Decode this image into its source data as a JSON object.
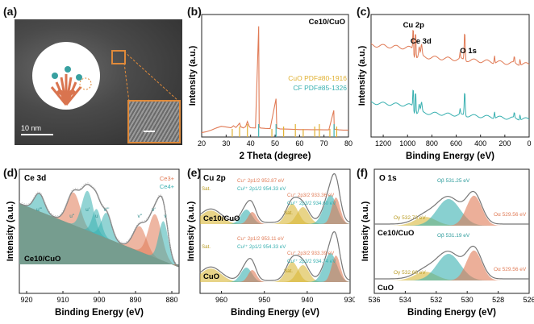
{
  "panels": {
    "a": {
      "label": "(a)",
      "scale_bar": "10 nm"
    },
    "b": {
      "label": "(b)"
    },
    "c": {
      "label": "(c)"
    },
    "d": {
      "label": "(d)"
    },
    "e": {
      "label": "(e)"
    },
    "f": {
      "label": "(f)"
    }
  },
  "chart_data": [
    {
      "id": "b",
      "type": "line",
      "title": "Ce10/CuO",
      "xlabel": "2 Theta (degree)",
      "ylabel": "Intensity (a.u.)",
      "xlim": [
        20,
        80
      ],
      "xticks": [
        20,
        30,
        40,
        50,
        60,
        70,
        80
      ],
      "series": [
        {
          "name": "Ce10/CuO",
          "color": "#e07a55",
          "x": [
            20,
            22,
            24,
            26,
            28,
            30,
            32,
            33,
            34,
            35.5,
            36,
            37,
            38,
            38.7,
            39.5,
            40,
            42,
            43.3,
            43.5,
            44,
            46,
            48,
            50.4,
            50.7,
            52,
            55,
            58,
            60,
            62,
            65,
            68,
            70,
            72,
            74,
            74.2,
            76,
            78,
            80
          ],
          "y": [
            1.0,
            1.8,
            3.2,
            5.0,
            6.4,
            5.8,
            5.2,
            6.8,
            5.4,
            9.0,
            6.0,
            5.0,
            6.2,
            10.5,
            6.0,
            5.2,
            5.0,
            92,
            6.0,
            5.0,
            4.6,
            4.4,
            30,
            5.0,
            4.2,
            4.0,
            3.8,
            3.6,
            3.6,
            3.5,
            3.5,
            3.4,
            3.4,
            20,
            4.0,
            3.4,
            3.2,
            3.2
          ]
        }
      ],
      "reference_lines": [
        {
          "name": "CuO PDF#80-1916",
          "color": "#e0b030",
          "positions": [
            32.5,
            35.5,
            38.7,
            48.7,
            53.5,
            58.3,
            61.5,
            66.2,
            68.1,
            72.4,
            75.2
          ]
        },
        {
          "name": "CF PDF#85-1326",
          "color": "#38b0b0",
          "positions": [
            43.3,
            50.4,
            74.1
          ]
        }
      ]
    },
    {
      "id": "c",
      "type": "line",
      "xlabel": "Binding Energy (eV)",
      "ylabel": "Intensity (a.u.)",
      "xlim": [
        1300,
        0
      ],
      "xticks": [
        1200,
        1000,
        800,
        600,
        400,
        200,
        0
      ],
      "annotations": [
        "Cu 2p",
        "Ce 3d",
        "O 1s"
      ],
      "series": [
        {
          "name": "Ce10/CuO",
          "color": "#e07a55"
        },
        {
          "name": "CuO",
          "color": "#38b0b0"
        }
      ]
    },
    {
      "id": "d",
      "type": "line",
      "title": "Ce 3d",
      "sample": "Ce10/CuO",
      "xlabel": "Binding Energy (eV)",
      "ylabel": "Intensity (a.u.)",
      "xlim": [
        922,
        878
      ],
      "xticks": [
        920,
        910,
        900,
        890,
        880
      ],
      "legend": [
        "Ce3+",
        "Ce4+"
      ],
      "peaks": [
        "u'''",
        "u''",
        "u'",
        "u",
        "v'''",
        "v''",
        "v'",
        "v"
      ]
    },
    {
      "id": "e",
      "type": "line",
      "title": "Cu 2p",
      "xlabel": "Binding Energy (eV)",
      "ylabel": "Intensity (a.u.)",
      "xlim": [
        965,
        930
      ],
      "xticks": [
        960,
        950,
        940,
        930
      ],
      "samples": [
        {
          "name": "Ce10/CuO",
          "labels": [
            "Cu⁺ 2p1/2 952.87 eV",
            "Cu²⁺ 2p1/2 954.33 eV",
            "Cu⁺ 2p3/2 933.36 eV",
            "Cu²⁺ 2p3/2 934.60 eV",
            "Sat.",
            "Sat."
          ]
        },
        {
          "name": "CuO",
          "labels": [
            "Cu⁺ 2p1/2 953.11 eV",
            "Cu²⁺ 2p1/2 954.33 eV",
            "Cu⁺ 2p3/2 933.39 eV",
            "Cu²⁺ 2p3/2 934.74 eV",
            "Sat.",
            "Sat."
          ]
        }
      ]
    },
    {
      "id": "f",
      "type": "line",
      "title": "O 1s",
      "xlabel": "Binding Energy (eV)",
      "ylabel": "Intensity (a.u.)",
      "xlim": [
        536,
        526
      ],
      "xticks": [
        536,
        534,
        532,
        530,
        528,
        526
      ],
      "samples": [
        {
          "name": "Ce10/CuO",
          "labels": [
            "Oβ 531.25 eV",
            "Oα 529.56 eV",
            "Oγ 532.73 eV"
          ]
        },
        {
          "name": "CuO",
          "labels": [
            "Oβ 531.19 eV",
            "Oα 529.56 eV",
            "Oγ 532.66 eV"
          ]
        }
      ]
    }
  ]
}
